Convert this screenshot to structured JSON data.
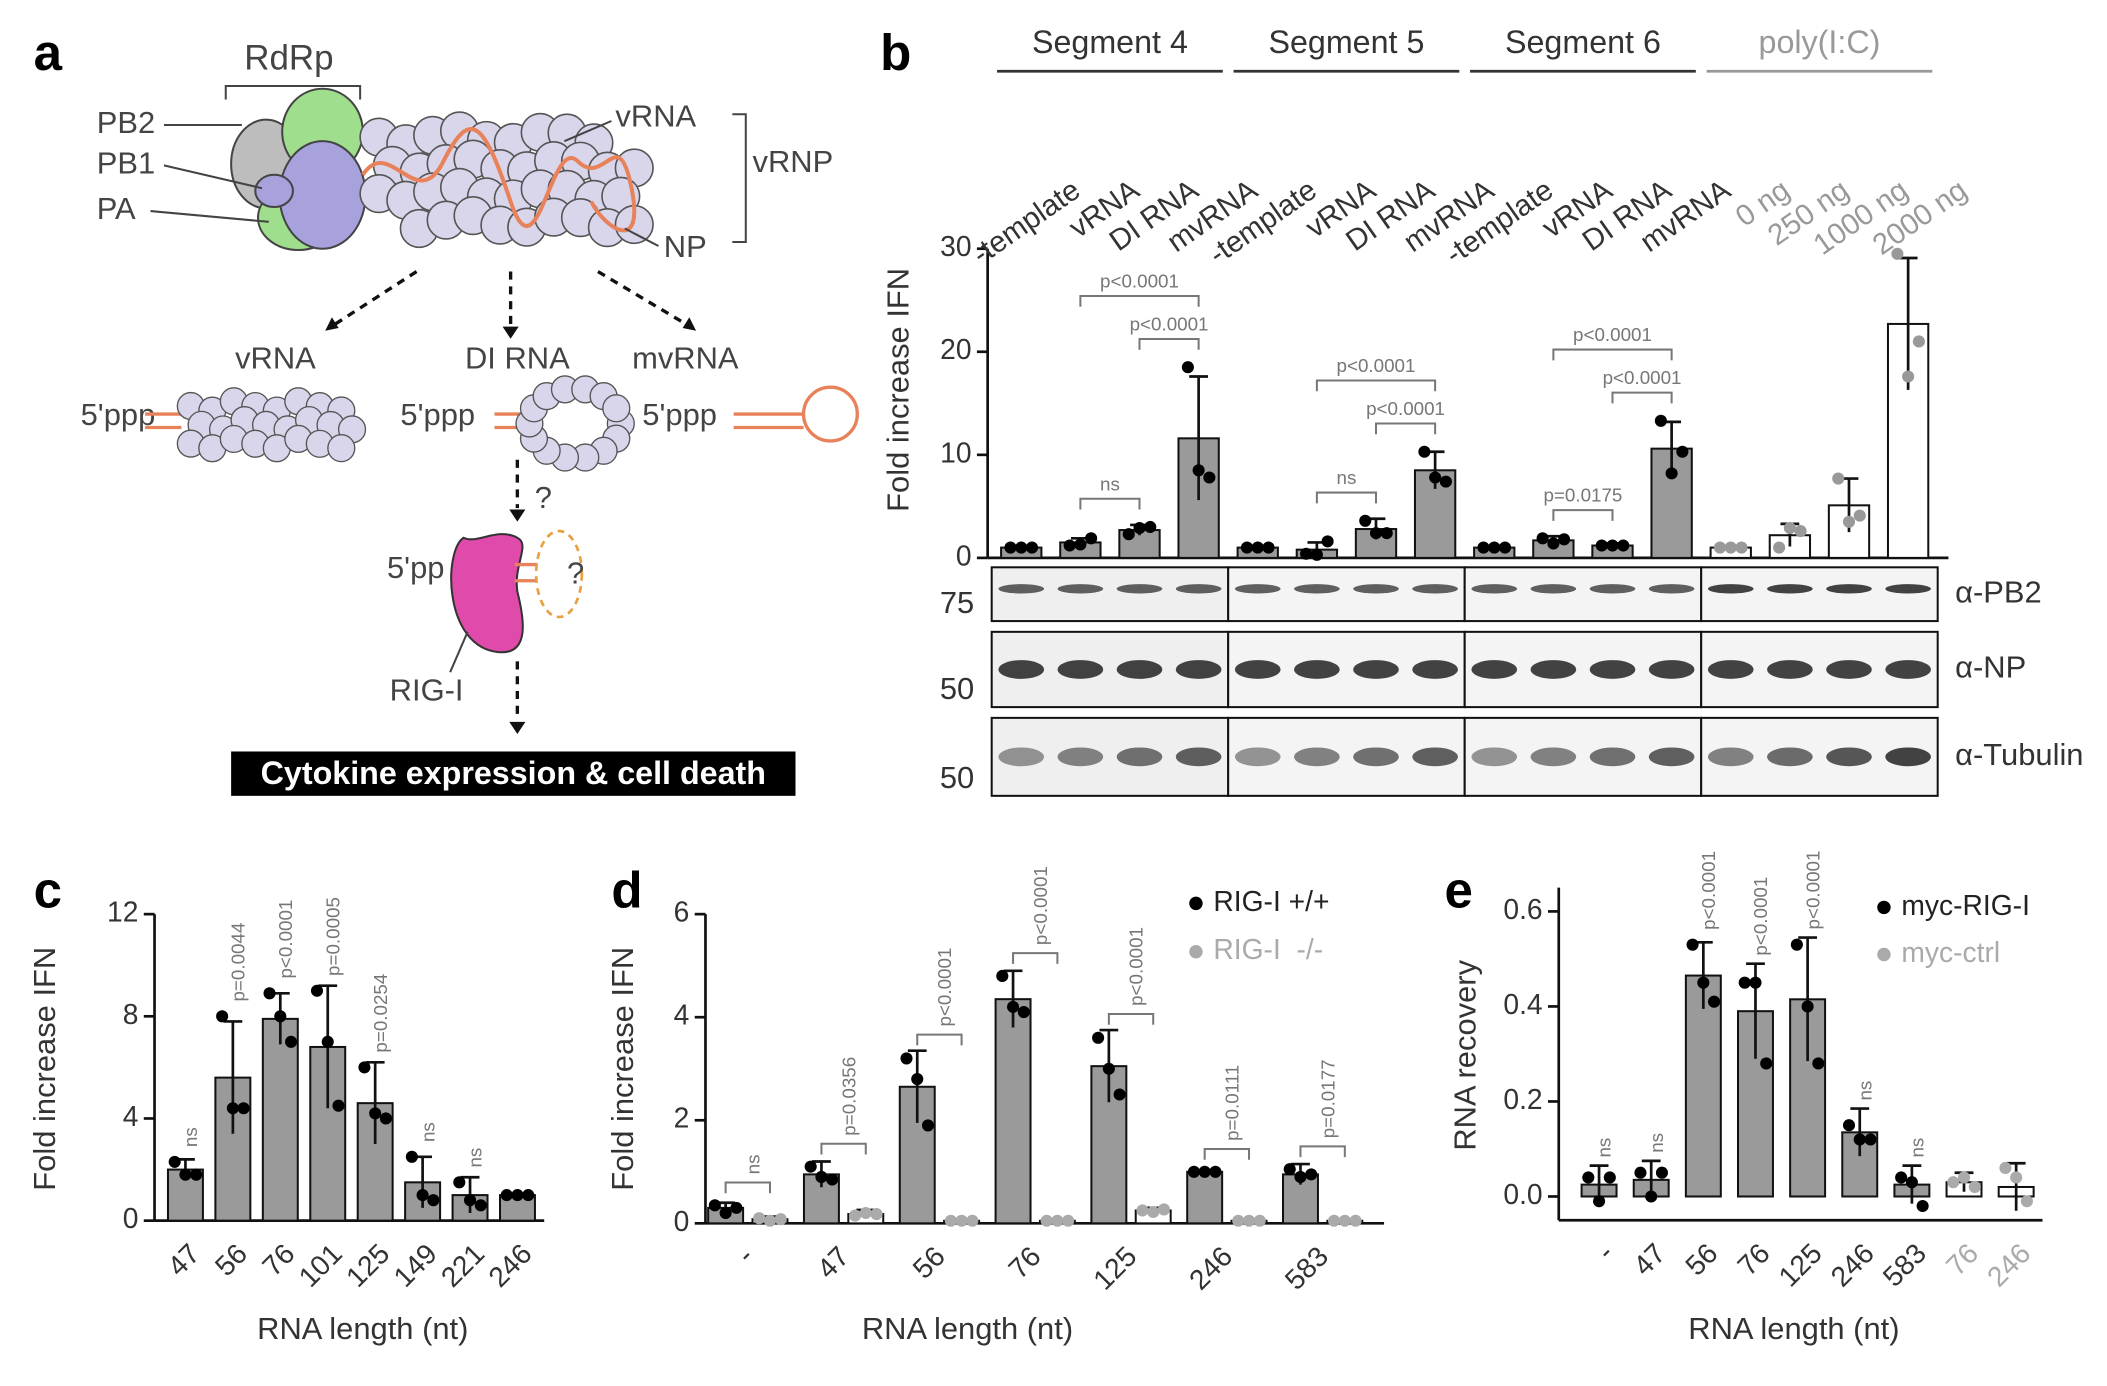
{
  "diagram": {
    "panel_label": "a",
    "rdrp": "RdRp",
    "pb2": "PB2",
    "pb1": "PB1",
    "pa": "PA",
    "vrna_label": "vRNA",
    "vrnp": "vRNP",
    "np": "NP",
    "products": [
      {
        "name": "vRNA",
        "end": "5'ppp"
      },
      {
        "name": "DI RNA",
        "end": "5'ppp"
      },
      {
        "name": "mvRNA",
        "end": "5'ppp"
      }
    ],
    "question_1": "?",
    "rig_end": "5'pp",
    "question_2": "?",
    "rig_i": "RIG-I",
    "outcome": "Cytokine expression & cell death"
  },
  "chart_data": [
    {
      "panel_label": "b",
      "type": "bar",
      "y_label": "Fold increase IFN",
      "ylim": [
        0,
        30
      ],
      "yticks": [
        0,
        10,
        20,
        30
      ],
      "groups": [
        {
          "name": "Segment 4",
          "color": "#333333",
          "bar_color": "#9a9a9a",
          "point_color": "#000000",
          "categories": [
            "-template",
            "vRNA",
            "DI RNA",
            "mvRNA"
          ],
          "values": [
            1,
            1.5,
            2.7,
            11.6
          ],
          "errors": [
            0.1,
            0.4,
            0.5,
            6.0
          ],
          "points": [
            [
              1,
              1,
              1
            ],
            [
              1.2,
              1.3,
              1.9
            ],
            [
              2.3,
              2.9,
              3.0
            ],
            [
              18.5,
              8.5,
              7.8
            ]
          ],
          "comparisons": [
            {
              "from": 1,
              "to": 2,
              "label": "ns"
            },
            {
              "from": 2,
              "to": 3,
              "label": "p<0.0001"
            },
            {
              "from": 1,
              "to": 3,
              "label": "p<0.0001"
            }
          ]
        },
        {
          "name": "Segment 5",
          "color": "#333333",
          "bar_color": "#9a9a9a",
          "point_color": "#000000",
          "categories": [
            "-template",
            "vRNA",
            "DI RNA",
            "mvRNA"
          ],
          "values": [
            1,
            0.8,
            2.8,
            8.5
          ],
          "errors": [
            0.1,
            0.7,
            1.0,
            1.8
          ],
          "points": [
            [
              1,
              1,
              1
            ],
            [
              0.4,
              0.3,
              1.6
            ],
            [
              3.6,
              2.4,
              2.4
            ],
            [
              10.3,
              7.8,
              7.4
            ]
          ],
          "comparisons": [
            {
              "from": 1,
              "to": 2,
              "label": "ns"
            },
            {
              "from": 2,
              "to": 3,
              "label": "p<0.0001"
            },
            {
              "from": 1,
              "to": 3,
              "label": "p<0.0001"
            }
          ]
        },
        {
          "name": "Segment 6",
          "color": "#333333",
          "bar_color": "#9a9a9a",
          "point_color": "#000000",
          "categories": [
            "-template",
            "vRNA",
            "DI RNA",
            "mvRNA"
          ],
          "values": [
            1,
            1.7,
            1.2,
            10.6
          ],
          "errors": [
            0.1,
            0.4,
            0.2,
            2.6
          ],
          "points": [
            [
              1,
              1,
              1
            ],
            [
              1.9,
              1.4,
              1.8
            ],
            [
              1.2,
              1.2,
              1.2
            ],
            [
              13.3,
              8.2,
              10.3
            ]
          ],
          "comparisons": [
            {
              "from": 1,
              "to": 2,
              "label": "p=0.0175"
            },
            {
              "from": 2,
              "to": 3,
              "label": "p<0.0001"
            },
            {
              "from": 1,
              "to": 3,
              "label": "p<0.0001"
            }
          ]
        },
        {
          "name": "poly(I:C)",
          "color": "#999999",
          "bar_color": "#ffffff",
          "point_color": "#999999",
          "categories": [
            "0 ng",
            "250 ng",
            "1000 ng",
            "2000 ng"
          ],
          "values": [
            1,
            2.2,
            5.1,
            22.7
          ],
          "errors": [
            0.1,
            1.1,
            2.6,
            6.4
          ],
          "points": [
            [
              1,
              1,
              1
            ],
            [
              1,
              2.9,
              2.6
            ],
            [
              7.7,
              3.5,
              4.1
            ],
            [
              29.5,
              17.6,
              21
            ]
          ],
          "comparisons": []
        }
      ],
      "blots": [
        {
          "label": "α-PB2",
          "marker": "75"
        },
        {
          "label": "α-NP",
          "marker": "50"
        },
        {
          "label": "α-Tubulin",
          "marker": "50"
        }
      ]
    },
    {
      "panel_label": "c",
      "type": "bar",
      "y_label": "Fold increase IFN",
      "x_label": "RNA length (nt)",
      "ylim": [
        0,
        12
      ],
      "yticks": [
        0,
        4,
        8,
        12
      ],
      "bar_color": "#9a9a9a",
      "point_color": "#000000",
      "categories": [
        "47",
        "56",
        "76",
        "101",
        "125",
        "149",
        "221",
        "246"
      ],
      "values": [
        2.0,
        5.6,
        7.9,
        6.8,
        4.6,
        1.5,
        1.0,
        1.0
      ],
      "errors": [
        0.4,
        2.2,
        1.0,
        2.4,
        1.6,
        1.0,
        0.7,
        0.05
      ],
      "points": [
        [
          2.3,
          1.8,
          1.8
        ],
        [
          8.0,
          4.4,
          4.4
        ],
        [
          8.9,
          8.0,
          7.0
        ],
        [
          9.0,
          7.0,
          4.5
        ],
        [
          6.0,
          4.2,
          4.0
        ],
        [
          2.5,
          1.0,
          0.8
        ],
        [
          1.5,
          0.8,
          0.6
        ],
        [
          1,
          1,
          1
        ]
      ],
      "annotations": [
        "ns",
        "p=0.0044",
        "p<0.0001",
        "p=0.0005",
        "p=0.0254",
        "ns",
        "ns",
        null
      ]
    },
    {
      "panel_label": "d",
      "type": "paired-bar",
      "y_label": "Fold increase IFN",
      "x_label": "RNA length (nt)",
      "ylim": [
        0,
        6
      ],
      "yticks": [
        0,
        2,
        4,
        6
      ],
      "legend": "top-right",
      "categories": [
        "-",
        "47",
        "56",
        "76",
        "125",
        "246",
        "583"
      ],
      "series": [
        {
          "name": "RIG-I +/+",
          "color": "#000000",
          "bar_color": "#9a9a9a",
          "values": [
            0.3,
            0.95,
            2.65,
            4.35,
            3.05,
            1.0,
            0.95
          ],
          "errors": [
            0.1,
            0.25,
            0.7,
            0.55,
            0.7,
            0.02,
            0.2
          ],
          "points": [
            [
              0.35,
              0.2,
              0.3
            ],
            [
              1.1,
              0.9,
              0.85
            ],
            [
              3.2,
              2.8,
              1.9
            ],
            [
              4.8,
              4.2,
              4.1
            ],
            [
              3.6,
              3.0,
              2.5
            ],
            [
              1,
              1,
              1
            ],
            [
              1.05,
              0.9,
              0.95
            ]
          ]
        },
        {
          "name": "RIG-I  -/-",
          "color": "#aaaaaa",
          "bar_color": "#ffffff",
          "values": [
            0.08,
            0.18,
            0.05,
            0.05,
            0.25,
            0.05,
            0.05
          ],
          "errors": [
            0.05,
            0.08,
            0.02,
            0.02,
            0.05,
            0.02,
            0.02
          ],
          "points": [
            [
              0.1,
              0.05,
              0.08
            ],
            [
              0.15,
              0.2,
              0.18
            ],
            [
              0.05,
              0.05,
              0.05
            ],
            [
              0.05,
              0.05,
              0.05
            ],
            [
              0.25,
              0.22,
              0.27
            ],
            [
              0.05,
              0.05,
              0.05
            ],
            [
              0.05,
              0.05,
              0.05
            ]
          ]
        }
      ],
      "annotations": [
        "ns",
        "p=0.0356",
        "p<0.0001",
        "p<0.0001",
        "p<0.0001",
        "p=0.0111",
        "p=0.0177"
      ]
    },
    {
      "panel_label": "e",
      "type": "bar",
      "y_label": "RNA recovery",
      "x_label": "RNA length (nt)",
      "ylim": [
        -0.05,
        0.65
      ],
      "yticks": [
        {
          "value": 0,
          "label": "0.0"
        },
        0.2,
        0.4,
        0.6
      ],
      "legend": "top-right",
      "categories": [
        "-",
        "47",
        "56",
        "76",
        "125",
        "246",
        "583",
        "76",
        "246"
      ],
      "series": [
        {
          "name": "myc-RIG-I",
          "color": "#000000",
          "bar_color": "#9a9a9a",
          "values": [
            0.025,
            0.035,
            0.465,
            0.39,
            0.415,
            0.135,
            0.025,
            null,
            null
          ],
          "errors": [
            0.04,
            0.04,
            0.07,
            0.1,
            0.13,
            0.05,
            0.04,
            null,
            null
          ],
          "points": [
            [
              0.04,
              -0.01,
              0.04
            ],
            [
              0.05,
              0.0,
              0.05
            ],
            [
              0.53,
              0.45,
              0.41
            ],
            [
              0.45,
              0.45,
              0.28
            ],
            [
              0.53,
              0.4,
              0.28
            ],
            [
              0.15,
              0.12,
              0.12
            ],
            [
              0.04,
              0.03,
              -0.02
            ],
            null,
            null
          ]
        },
        {
          "name": "myc-ctrl",
          "color": "#aaaaaa",
          "bar_color": "#ffffff",
          "values": [
            null,
            null,
            null,
            null,
            null,
            null,
            null,
            0.03,
            0.02
          ],
          "errors": [
            null,
            null,
            null,
            null,
            null,
            null,
            null,
            0.02,
            0.05
          ],
          "points": [
            null,
            null,
            null,
            null,
            null,
            null,
            null,
            [
              0.03,
              0.04,
              0.02
            ],
            [
              0.06,
              0.04,
              -0.01
            ]
          ]
        }
      ],
      "annotations": [
        "ns",
        "ns",
        "p<0.0001",
        "p<0.0001",
        "p<0.0001",
        "ns",
        "ns",
        null,
        null
      ]
    }
  ]
}
